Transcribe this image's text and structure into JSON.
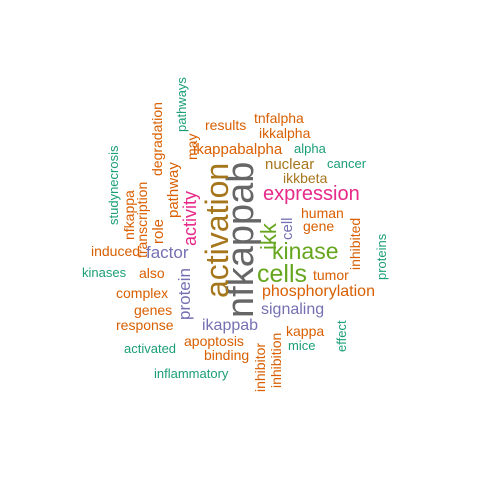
{
  "words": {
    "nfkappab": "nfkappab",
    "activation": "activation",
    "cells": "cells",
    "kinase": "kinase",
    "expression": "expression",
    "ikk": "ikk",
    "activity": "activity",
    "factor": "factor",
    "protein": "protein",
    "phosphorylation": "phosphorylation",
    "signaling": "signaling",
    "ikappab": "ikappab",
    "ikappabalpha": "ikappabalpha",
    "nuclear": "nuclear",
    "cell": "cell",
    "human": "human",
    "gene": "gene",
    "tumor": "tumor",
    "complex": "complex",
    "genes": "genes",
    "response": "response",
    "also": "also",
    "induced": "induced",
    "kinases": "kinases",
    "role": "role",
    "pathway": "pathway",
    "transcription": "transcription",
    "nfkappa": "nfkappa",
    "studynecrosis": "studynecrosis",
    "degradation": "degradation",
    "may": "may",
    "pathways": "pathways",
    "results": "results",
    "tnfalpha": "tnfalpha",
    "ikkalpha": "ikkalpha",
    "alpha": "alpha",
    "cancer": "cancer",
    "ikkbeta": "ikkbeta",
    "inhibited": "inhibited",
    "proteins": "proteins",
    "kappa": "kappa",
    "mice": "mice",
    "effect": "effect",
    "apoptosis": "apoptosis",
    "binding": "binding",
    "activated": "activated",
    "inflammatory": "inflammatory",
    "inhibitor": "inhibitor",
    "inhibition": "inhibition"
  },
  "palette": {
    "orange": "#d95f02",
    "teal": "#1b9e77",
    "purple": "#7570b3",
    "pink": "#e7298a",
    "green": "#66a61e",
    "olive": "#a6761d",
    "gray": "#666666"
  }
}
